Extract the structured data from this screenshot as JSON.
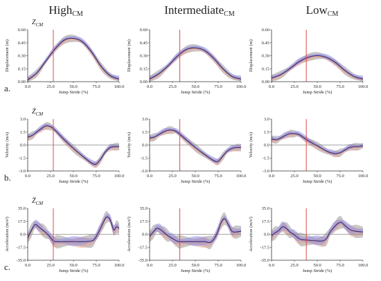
{
  "figure": {
    "columns": [
      {
        "main": "High",
        "sub": "CM"
      },
      {
        "main": "Intermediate",
        "sub": "CM"
      },
      {
        "main": "Low",
        "sub": "CM"
      }
    ],
    "rows": [
      {
        "label": "a.",
        "var_main": "Z",
        "var_sub": "CM",
        "var_mark": ""
      },
      {
        "label": "b.",
        "var_main": "Ż",
        "var_sub": "CM",
        "var_mark": "dot"
      },
      {
        "label": "c.",
        "var_main": "Z̈",
        "var_sub": "CM",
        "var_mark": "ddot"
      }
    ],
    "colors": {
      "band_blue": "#8f8fe6",
      "band_red": "#e6a28f",
      "band_gray": "#9a9a9a",
      "mean_line": "#3a2a66",
      "event_line": "#e04848",
      "zero_line": "#888888",
      "axis": "#333333"
    }
  },
  "chart_data": [
    {
      "id": "a-high",
      "type": "line",
      "ylabel": "Displacement (m)",
      "xlabel": "Jump Stride (%)",
      "xlim": [
        0,
        100
      ],
      "ylim": [
        0,
        0.6
      ],
      "xticks": [
        "0.0",
        "25.0",
        "50.0",
        "75.0",
        "100.0"
      ],
      "yticks": [
        "0.00",
        "0.15",
        "0.30",
        "0.45",
        "0.60"
      ],
      "event_x": 28,
      "x": [
        0,
        10,
        20,
        30,
        40,
        50,
        60,
        70,
        80,
        90,
        100
      ],
      "series": [
        {
          "values": [
            0.02,
            0.1,
            0.24,
            0.38,
            0.48,
            0.5,
            0.46,
            0.34,
            0.18,
            0.07,
            0.03
          ]
        }
      ]
    },
    {
      "id": "a-int",
      "type": "line",
      "ylabel": "Displacement (m)",
      "xlabel": "Jump Stride (%)",
      "xlim": [
        0,
        100
      ],
      "ylim": [
        0,
        0.6
      ],
      "xticks": [
        "0.0",
        "25.0",
        "50.0",
        "75.0",
        "100.0"
      ],
      "yticks": [
        "0.00",
        "0.15",
        "0.30",
        "0.45",
        "0.60"
      ],
      "event_x": 33,
      "x": [
        0,
        10,
        20,
        30,
        40,
        50,
        60,
        70,
        80,
        90,
        100
      ],
      "series": [
        {
          "values": [
            0.03,
            0.09,
            0.18,
            0.29,
            0.37,
            0.39,
            0.36,
            0.27,
            0.15,
            0.06,
            0.03
          ]
        }
      ]
    },
    {
      "id": "a-low",
      "type": "line",
      "ylabel": "Displacement (m)",
      "xlabel": "Jump Stride (%)",
      "xlim": [
        0,
        100
      ],
      "ylim": [
        0,
        0.6
      ],
      "xticks": [
        "0.0",
        "25.0",
        "50.0",
        "75.0",
        "100.0"
      ],
      "yticks": [
        "0.00",
        "0.15",
        "0.30",
        "0.45",
        "0.60"
      ],
      "event_x": 38,
      "x": [
        0,
        10,
        20,
        30,
        40,
        50,
        60,
        70,
        80,
        90,
        100
      ],
      "series": [
        {
          "values": [
            0.04,
            0.08,
            0.15,
            0.23,
            0.28,
            0.3,
            0.28,
            0.22,
            0.13,
            0.06,
            0.03
          ]
        }
      ]
    },
    {
      "id": "b-high",
      "type": "line",
      "ylabel": "Velocity (m/s)",
      "xlabel": "Jump Stride (%)",
      "xlim": [
        0,
        100
      ],
      "ylim": [
        -3,
        3
      ],
      "xticks": [
        "0.0",
        "25.0",
        "50.0",
        "75.0",
        "100.0"
      ],
      "yticks": [
        "-3.0",
        "-1.5",
        "0.0",
        "1.5",
        "3.0"
      ],
      "event_x": 28,
      "x": [
        0,
        5,
        10,
        15,
        20,
        25,
        30,
        40,
        50,
        60,
        70,
        75,
        80,
        85,
        90,
        95,
        100
      ],
      "series": [
        {
          "values": [
            0.9,
            1.1,
            1.5,
            1.9,
            2.2,
            2.1,
            1.7,
            0.6,
            -0.4,
            -1.3,
            -2.1,
            -2.2,
            -1.6,
            -0.8,
            -0.3,
            -0.2,
            -0.2
          ]
        }
      ]
    },
    {
      "id": "b-int",
      "type": "line",
      "ylabel": "Velocity (m/s)",
      "xlabel": "Jump Stride (%)",
      "xlim": [
        0,
        100
      ],
      "ylim": [
        -3,
        3
      ],
      "xticks": [
        "0.0",
        "25.0",
        "50.0",
        "75.0",
        "100.0"
      ],
      "yticks": [
        "-3.0",
        "-1.5",
        "0.0",
        "1.5",
        "3.0"
      ],
      "event_x": 33,
      "x": [
        0,
        5,
        10,
        15,
        20,
        25,
        30,
        40,
        50,
        60,
        70,
        75,
        80,
        85,
        90,
        95,
        100
      ],
      "series": [
        {
          "values": [
            0.8,
            0.9,
            1.2,
            1.5,
            1.7,
            1.7,
            1.5,
            0.6,
            -0.3,
            -1.1,
            -1.8,
            -1.9,
            -1.3,
            -0.7,
            -0.4,
            -0.3,
            -0.3
          ]
        }
      ]
    },
    {
      "id": "b-low",
      "type": "line",
      "ylabel": "Velocity (m/s)",
      "xlabel": "Jump Stride (%)",
      "xlim": [
        0,
        100
      ],
      "ylim": [
        -3,
        3
      ],
      "xticks": [
        "0.0",
        "25.0",
        "50.0",
        "75.0",
        "100.0"
      ],
      "yticks": [
        "-3.0",
        "-1.5",
        "0.0",
        "1.5",
        "3.0"
      ],
      "event_x": 38,
      "x": [
        0,
        5,
        10,
        15,
        20,
        25,
        30,
        40,
        50,
        60,
        65,
        70,
        75,
        80,
        85,
        90,
        95,
        100
      ],
      "series": [
        {
          "values": [
            0.7,
            0.6,
            0.8,
            1.1,
            1.3,
            1.3,
            1.2,
            0.5,
            -0.1,
            -0.7,
            -0.9,
            -1.0,
            -0.9,
            -0.6,
            -0.3,
            -0.2,
            -0.2,
            -0.1
          ]
        }
      ]
    },
    {
      "id": "c-high",
      "type": "line",
      "ylabel": "Acceleration (m/s²)",
      "xlabel": "Jump Stride (%)",
      "xlim": [
        0,
        100
      ],
      "ylim": [
        -35,
        35
      ],
      "xticks": [
        "0.0",
        "25.0",
        "50.0",
        "75.0",
        "100.0"
      ],
      "yticks": [
        "-35.0",
        "-17.5",
        "0.0",
        "17.5",
        "35.0"
      ],
      "event_x": 28,
      "x": [
        0,
        4,
        8,
        12,
        16,
        20,
        24,
        28,
        32,
        40,
        50,
        60,
        70,
        74,
        78,
        82,
        86,
        90,
        94,
        97,
        100
      ],
      "series": [
        {
          "values": [
            -5,
            5,
            13,
            10,
            6,
            2,
            -3,
            -9,
            -10,
            -10,
            -10,
            -10,
            -9,
            -5,
            4,
            14,
            23,
            20,
            6,
            10,
            8
          ]
        }
      ]
    },
    {
      "id": "c-int",
      "type": "line",
      "ylabel": "Acceleration (m/s²)",
      "xlabel": "Jump Stride (%)",
      "xlim": [
        0,
        100
      ],
      "ylim": [
        -35,
        35
      ],
      "xticks": [
        "0.0",
        "25.0",
        "50.0",
        "75.0",
        "100.0"
      ],
      "yticks": [
        "-35.0",
        "-17.5",
        "0.0",
        "17.5",
        "35.0"
      ],
      "event_x": 33,
      "x": [
        0,
        4,
        8,
        12,
        16,
        20,
        24,
        28,
        32,
        40,
        50,
        60,
        66,
        70,
        74,
        78,
        82,
        86,
        90,
        94,
        100
      ],
      "series": [
        {
          "values": [
            -3,
            3,
            8,
            6,
            2,
            -2,
            -5,
            -8,
            -10,
            -10,
            -10,
            -10,
            -11,
            -7,
            2,
            15,
            21,
            13,
            4,
            3,
            4
          ]
        }
      ]
    },
    {
      "id": "c-low",
      "type": "line",
      "ylabel": "Acceleration (m/s²)",
      "xlabel": "Jump Stride (%)",
      "xlim": [
        0,
        100
      ],
      "ylim": [
        -35,
        35
      ],
      "xticks": [
        "0.0",
        "25.0",
        "50.0",
        "75.0",
        "100.0"
      ],
      "yticks": [
        "-35.0",
        "-17.5",
        "0.0",
        "17.5",
        "35.0"
      ],
      "event_x": 38,
      "x": [
        0,
        4,
        8,
        12,
        16,
        20,
        24,
        28,
        32,
        40,
        50,
        56,
        60,
        64,
        68,
        72,
        76,
        80,
        86,
        92,
        100
      ],
      "series": [
        {
          "values": [
            -2,
            2,
            5,
            10,
            8,
            3,
            0,
            -4,
            -7,
            -8,
            -9,
            -9,
            -6,
            3,
            9,
            14,
            16,
            12,
            6,
            4,
            3
          ]
        }
      ]
    }
  ]
}
